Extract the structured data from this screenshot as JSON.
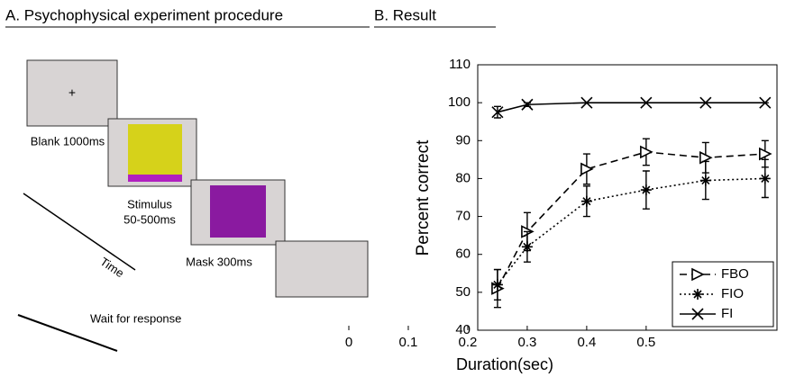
{
  "figure": {
    "panel_a": {
      "title": "A. Psychophysical experiment procedure",
      "blank": "Blank 1000ms",
      "stimulus": [
        "Stimulus",
        "50-500ms"
      ],
      "mask": "Mask 300ms",
      "wait": "Wait for response",
      "time": "Time"
    }
  },
  "chart_data": {
    "type": "line",
    "title": "B. Result",
    "x_label": "Duration(sec)",
    "y_label": "Percent correct",
    "x": [
      0.25,
      0.3,
      0.4,
      0.5,
      0.6,
      0.7
    ],
    "series": [
      {
        "name": "FBO",
        "color": "#000000",
        "dash": "dashed",
        "marker": "triangle",
        "values": [
          51,
          66,
          82.5,
          87,
          85.5,
          86.5
        ],
        "errors": [
          5,
          5,
          4,
          3.5,
          4,
          3.5
        ]
      },
      {
        "name": "FIO",
        "color": "#000000",
        "dash": "dotted",
        "marker": "asterisk",
        "values": [
          52,
          62,
          74,
          77,
          79.5,
          80
        ],
        "errors": [
          4,
          4,
          4,
          5,
          5,
          5
        ]
      },
      {
        "name": "FI",
        "color": "#000000",
        "dash": "solid",
        "marker": "x",
        "values": [
          97.5,
          99.5,
          100,
          100,
          100,
          100
        ],
        "errors": [
          1.5,
          0.5,
          0,
          0,
          0,
          0
        ]
      }
    ],
    "xlim": [
      0,
      0.72
    ],
    "xticks": [
      0,
      0.1,
      0.2,
      0.3,
      0.4,
      0.5
    ],
    "ylim": [
      40,
      110
    ],
    "yticks": [
      40,
      50,
      60,
      70,
      80,
      90,
      100,
      110
    ],
    "legend": "lower right"
  }
}
